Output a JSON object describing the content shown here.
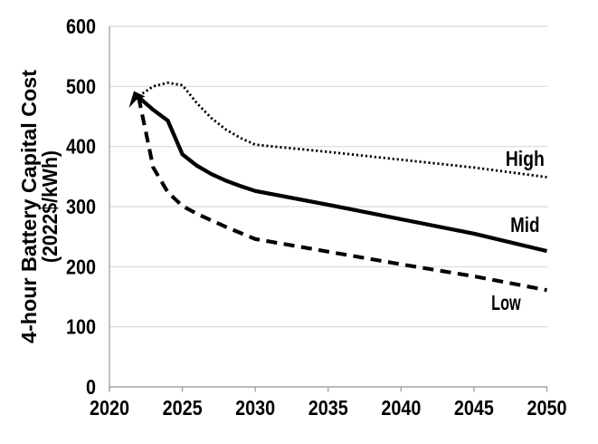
{
  "chart_data": {
    "type": "line",
    "title": "",
    "ylabel_line1": "4-hour Battery Capital Cost",
    "ylabel_line2": "(2022$/kWh)",
    "xlabel": "",
    "x": [
      2022,
      2023,
      2024,
      2025,
      2026,
      2027,
      2028,
      2029,
      2030,
      2035,
      2040,
      2045,
      2050
    ],
    "series": [
      {
        "name": "High",
        "style": "dotted",
        "values": [
          484,
          500,
          506,
          502,
          472,
          447,
          428,
          414,
          403,
          391,
          378,
          365,
          349
        ],
        "label_anchor": {
          "year": 2048.5,
          "value": 380
        }
      },
      {
        "name": "Mid",
        "style": "solid",
        "values": [
          482,
          461,
          443,
          387,
          368,
          354,
          343,
          334,
          326,
          303,
          279,
          255,
          226
        ],
        "label_anchor": {
          "year": 2048.5,
          "value": 270
        }
      },
      {
        "name": "Low",
        "style": "dashed",
        "values": [
          482,
          365,
          324,
          301,
          288,
          277,
          266,
          256,
          246,
          225,
          204,
          184,
          161
        ],
        "label_anchor": {
          "year": 2047.2,
          "value": 140
        }
      }
    ],
    "x_ticks": [
      2020,
      2025,
      2030,
      2035,
      2040,
      2045,
      2050
    ],
    "y_ticks": [
      0,
      100,
      200,
      300,
      400,
      500,
      600
    ],
    "xlim": [
      2020,
      2050
    ],
    "ylim": [
      0,
      600
    ],
    "grid": "horizontal",
    "legend_position": "inline-right",
    "colors": {
      "line": "#000000",
      "gridline": "#d9d9d9",
      "axis": "#a6a6a6",
      "text": "#000000",
      "background": "#ffffff"
    }
  }
}
